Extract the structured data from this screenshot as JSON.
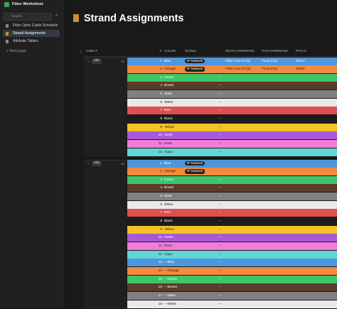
{
  "sidebar": {
    "title": "Fiber Worksheet",
    "search": "Search",
    "pages": [
      "Fiber Optic Cable Schedule",
      "Strand Assignments",
      "Attribute Tables"
    ],
    "selected": 1,
    "new_page": "+ New page"
  },
  "header": {
    "title": "Strand Assignments"
  },
  "table": {
    "columns": [
      "Cable #",
      "#",
      "COLOR",
      "SIGNAL",
      "NEAR HARDWARE",
      "FAR HARDWARE",
      "PATCH"
    ],
    "groups": [
      {
        "cable": "101",
        "count": "12",
        "rows": [
          {
            "num": "1",
            "color": "Blue",
            "fill": "#4f96dc",
            "signal": {
              "tag": "IP Network"
            },
            "near": "Fiber core-01 [1]",
            "far": "Truck [A4]",
            "patch": "Direct"
          },
          {
            "num": "2",
            "color": "Orange",
            "fill": "#f38a3c",
            "signal": {
              "tag": "IP Network"
            },
            "near": "Fiber core-01 [1]",
            "far": "Truck [A4]",
            "patch": "Direct"
          },
          {
            "num": "3",
            "color": "Green",
            "fill": "#3ec56a",
            "signal": "–"
          },
          {
            "num": "4",
            "color": "Brown",
            "fill": "#5b3b2b",
            "signal": "–"
          },
          {
            "num": "5",
            "color": "Slate",
            "fill": "#808080",
            "signal": "–"
          },
          {
            "num": "6",
            "color": "White",
            "fill": "#e9e9e9",
            "signal": "–"
          },
          {
            "num": "7",
            "color": "Red",
            "fill": "#e04f4f",
            "signal": "–"
          },
          {
            "num": "8",
            "color": "Black",
            "fill": "#1c1c1c",
            "signal": "–"
          },
          {
            "num": "9",
            "color": "Yellow",
            "fill": "#f5c225",
            "signal": "–"
          },
          {
            "num": "10",
            "color": "Violet",
            "fill": "#a55bd8",
            "signal": "–"
          },
          {
            "num": "11",
            "color": "Rose",
            "fill": "#f47bd8",
            "signal": "–"
          },
          {
            "num": "12",
            "color": "Aqua",
            "fill": "#62d5d6",
            "signal": "–"
          }
        ]
      },
      {
        "cable": "102",
        "count": "24",
        "rows": [
          {
            "num": "1",
            "color": "Blue",
            "fill": "#4f96dc",
            "signal": {
              "tag": "IP Network"
            }
          },
          {
            "num": "2",
            "color": "Orange",
            "fill": "#f38a3c",
            "signal": {
              "tag": "IP Network"
            }
          },
          {
            "num": "3",
            "color": "Green",
            "fill": "#3ec56a",
            "signal": "–"
          },
          {
            "num": "4",
            "color": "Brown",
            "fill": "#5b3b2b",
            "signal": "–"
          },
          {
            "num": "5",
            "color": "Slate",
            "fill": "#808080",
            "signal": "–"
          },
          {
            "num": "6",
            "color": "White",
            "fill": "#e9e9e9",
            "signal": "–"
          },
          {
            "num": "7",
            "color": "Red",
            "fill": "#e04f4f",
            "signal": "–"
          },
          {
            "num": "8",
            "color": "Black",
            "fill": "#1c1c1c",
            "signal": "–"
          },
          {
            "num": "9",
            "color": "Yellow",
            "fill": "#f5c225",
            "signal": "–"
          },
          {
            "num": "10",
            "color": "Violet",
            "fill": "#a55bd8",
            "signal": "–"
          },
          {
            "num": "11",
            "color": "Rose",
            "fill": "#f47bd8",
            "signal": "–"
          },
          {
            "num": "12",
            "color": "Aqua",
            "fill": "#62d5d6",
            "signal": "–"
          },
          {
            "num": "13",
            "color": "—Blue",
            "fill": "#4f96dc",
            "signal": "–"
          },
          {
            "num": "14",
            "color": "—Orange",
            "fill": "#f38a3c",
            "signal": "–"
          },
          {
            "num": "15",
            "color": "—Green",
            "fill": "#3ec56a",
            "signal": "–"
          },
          {
            "num": "16",
            "color": "—Brown",
            "fill": "#5b3b2b",
            "signal": "–"
          },
          {
            "num": "17",
            "color": "—Slate",
            "fill": "#808080",
            "signal": "–"
          },
          {
            "num": "18",
            "color": "—White",
            "fill": "#e9e9e9",
            "signal": "–"
          }
        ]
      }
    ]
  }
}
